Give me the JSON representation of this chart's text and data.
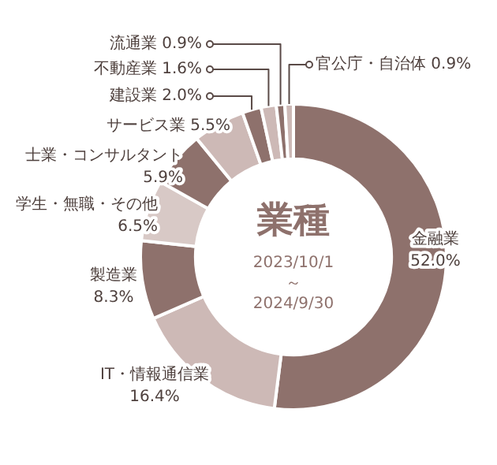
{
  "chart_data": {
    "type": "donut",
    "title": "業種",
    "subtitle": "2023/10/1 ～ 2024/9/30",
    "categories": [
      "金融業",
      "IT・情報通信業",
      "製造業",
      "学生・無職・その他",
      "士業・コンサルタント",
      "サービス業",
      "建設業",
      "不動産業",
      "流通業",
      "官公庁・自治体"
    ],
    "values": [
      52.0,
      16.4,
      8.3,
      6.5,
      5.9,
      5.5,
      2.0,
      1.6,
      0.9,
      0.9
    ],
    "value_labels": [
      "52.0%",
      "16.4%",
      "8.3%",
      "6.5%",
      "5.9%",
      "5.5%",
      "2.0%",
      "1.6%",
      "0.9%",
      "0.9%"
    ],
    "colors": [
      "#8e716c",
      "#cdb9b6",
      "#8e716c",
      "#d8c9c6",
      "#8e716c",
      "#cdb9b6",
      "#8e716c",
      "#cdb9b6",
      "#8e716c",
      "#cdb9b6"
    ],
    "legend": false
  }
}
